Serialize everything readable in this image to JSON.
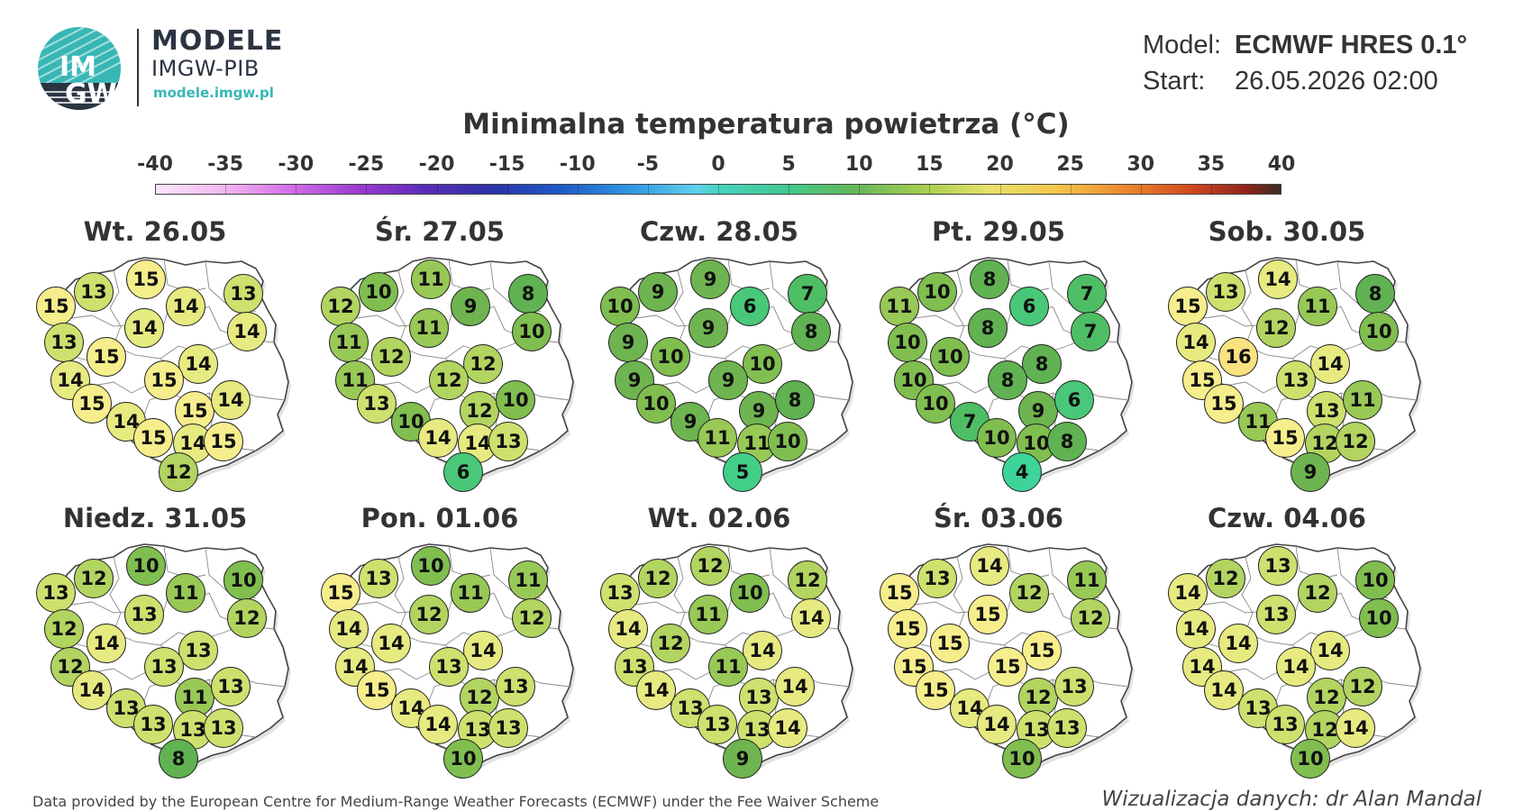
{
  "header": {
    "logo": {
      "mark_text_top": "IM",
      "mark_text_bottom": "GW",
      "brand": "MODELE",
      "sub": "IMGW-PIB",
      "url": "modele.imgw.pl",
      "mark_colors": {
        "circle": "#38b6b6",
        "circle_dark": "#2b3442",
        "text": "#ffffff"
      }
    },
    "model_label": "Model:",
    "model_value": "ECMWF HRES 0.1°",
    "start_label": "Start:",
    "start_value": "26.05.2026 02:00"
  },
  "title": "Minimalna temperatura powietrza (°C)",
  "scale": {
    "ticks": [
      "-40",
      "-35",
      "-30",
      "-25",
      "-20",
      "-15",
      "-10",
      "-5",
      "0",
      "5",
      "10",
      "15",
      "20",
      "25",
      "30",
      "35",
      "40"
    ],
    "min": -40,
    "max": 40
  },
  "panels": [
    {
      "title": "Wt. 26.05",
      "values": [
        15,
        13,
        15,
        14,
        13,
        14,
        13,
        14,
        15,
        14,
        14,
        15,
        15,
        15,
        14,
        14,
        15,
        14,
        15,
        12
      ]
    },
    {
      "title": "Śr. 27.05",
      "values": [
        12,
        10,
        11,
        9,
        8,
        10,
        11,
        11,
        12,
        12,
        11,
        12,
        13,
        12,
        10,
        10,
        14,
        14,
        13,
        6
      ]
    },
    {
      "title": "Czw. 28.05",
      "values": [
        10,
        9,
        9,
        6,
        7,
        8,
        9,
        9,
        10,
        10,
        9,
        9,
        10,
        9,
        8,
        9,
        11,
        11,
        10,
        5
      ]
    },
    {
      "title": "Pt. 29.05",
      "values": [
        11,
        10,
        8,
        6,
        7,
        7,
        10,
        8,
        10,
        8,
        10,
        8,
        10,
        9,
        6,
        7,
        10,
        10,
        8,
        4
      ]
    },
    {
      "title": "Sob. 30.05",
      "values": [
        15,
        13,
        14,
        11,
        8,
        10,
        14,
        12,
        16,
        14,
        15,
        13,
        15,
        13,
        11,
        11,
        15,
        12,
        12,
        9
      ]
    },
    {
      "title": "Niedz. 31.05",
      "values": [
        13,
        12,
        10,
        11,
        10,
        12,
        12,
        13,
        14,
        13,
        12,
        13,
        14,
        11,
        13,
        13,
        13,
        13,
        13,
        8
      ]
    },
    {
      "title": "Pon. 01.06",
      "values": [
        15,
        13,
        10,
        11,
        11,
        12,
        14,
        12,
        14,
        14,
        14,
        13,
        15,
        12,
        13,
        14,
        14,
        13,
        13,
        10
      ]
    },
    {
      "title": "Wt. 02.06",
      "values": [
        13,
        12,
        12,
        10,
        12,
        14,
        14,
        11,
        12,
        14,
        13,
        11,
        14,
        13,
        14,
        13,
        13,
        13,
        14,
        9
      ]
    },
    {
      "title": "Śr. 03.06",
      "values": [
        15,
        13,
        14,
        12,
        11,
        12,
        15,
        15,
        15,
        15,
        15,
        15,
        15,
        12,
        13,
        14,
        14,
        13,
        13,
        10
      ]
    },
    {
      "title": "Czw. 04.06",
      "values": [
        14,
        12,
        13,
        12,
        10,
        10,
        14,
        13,
        14,
        14,
        14,
        14,
        14,
        12,
        12,
        13,
        13,
        12,
        14,
        10
      ]
    }
  ],
  "footer": {
    "source": "Data provided by the European Centre for Medium-Range Weather Forecasts (ECMWF) under the Fee Waiver Scheme",
    "credit": "Wizualizacja danych: dr Alan Mandal"
  }
}
